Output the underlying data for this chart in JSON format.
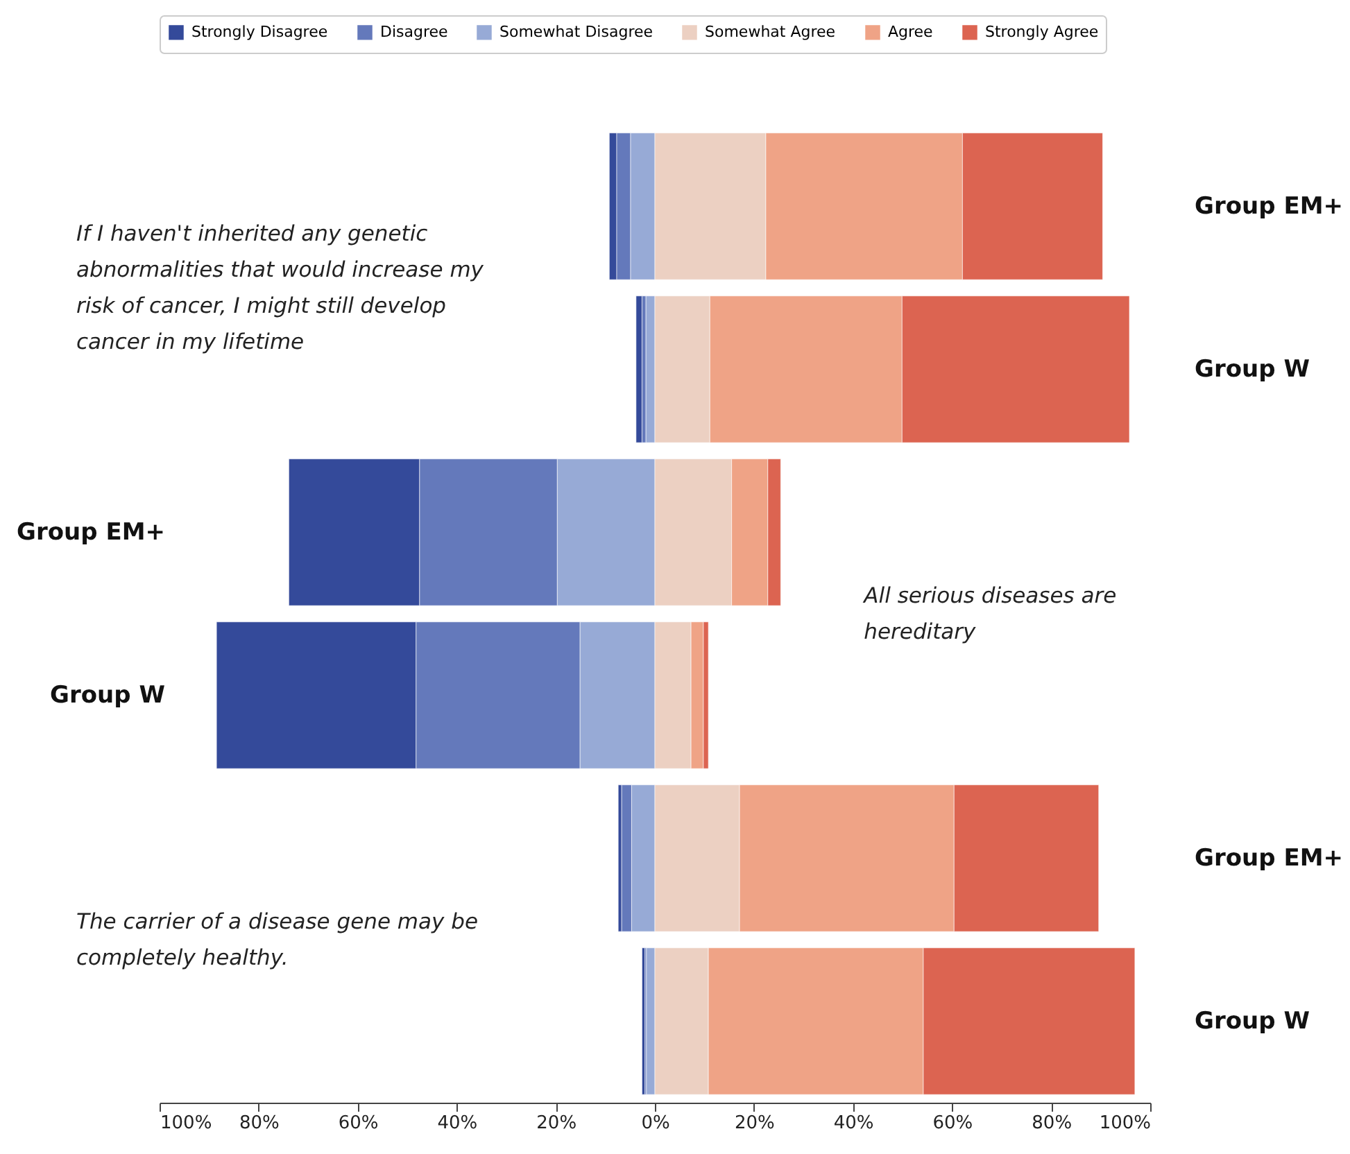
{
  "chart_data": {
    "type": "bar",
    "orientation": "horizontal",
    "stacked": true,
    "grid": false,
    "legend": "top",
    "categories": [
      "Group EM+",
      "Group W",
      "Group EM+",
      "Group W",
      "Group EM+",
      "Group W"
    ],
    "series": [
      {
        "name": "Strongly Disagree",
        "color": "#344a9a",
        "values": [
          -1.5,
          -1.2,
          -26.4,
          -40.3,
          -0.7,
          -0.6
        ]
      },
      {
        "name": "Disagree",
        "color": "#6479bb",
        "values": [
          -2.8,
          -0.8,
          -27.8,
          -33.1,
          -2.0,
          -0.3
        ]
      },
      {
        "name": "Somewhat Disagree",
        "color": "#97aad6",
        "values": [
          -4.9,
          -1.8,
          -19.7,
          -15.1,
          -4.7,
          -1.7
        ]
      },
      {
        "name": "Somewhat Agree",
        "color": "#ecd0c2",
        "values": [
          22.4,
          11.1,
          15.5,
          7.3,
          17.1,
          10.8
        ]
      },
      {
        "name": "Agree",
        "color": "#efa386",
        "values": [
          39.7,
          38.8,
          7.3,
          2.5,
          43.3,
          43.4
        ]
      },
      {
        "name": "Strongly Agree",
        "color": "#dc6451",
        "values": [
          28.3,
          45.9,
          2.6,
          1.0,
          29.2,
          42.7
        ]
      }
    ],
    "annotations": [
      "If I haven't inherited any genetic abnormalities that would increase my risk of cancer, I might still develop cancer in my lifetime",
      "All serious diseases are hereditary",
      "The carrier of a disease gene may be completely healthy."
    ],
    "xlim": [
      -100,
      100
    ],
    "xticks": [
      {
        "value": -100,
        "label": "100%"
      },
      {
        "value": -80,
        "label": "80%"
      },
      {
        "value": -60,
        "label": "60%"
      },
      {
        "value": -40,
        "label": "40%"
      },
      {
        "value": -20,
        "label": "20%"
      },
      {
        "value": 0,
        "label": "0%"
      },
      {
        "value": 20,
        "label": "20%"
      },
      {
        "value": 40,
        "label": "40%"
      },
      {
        "value": 60,
        "label": "60%"
      },
      {
        "value": 80,
        "label": "80%"
      },
      {
        "value": 100,
        "label": "100%"
      }
    ]
  }
}
